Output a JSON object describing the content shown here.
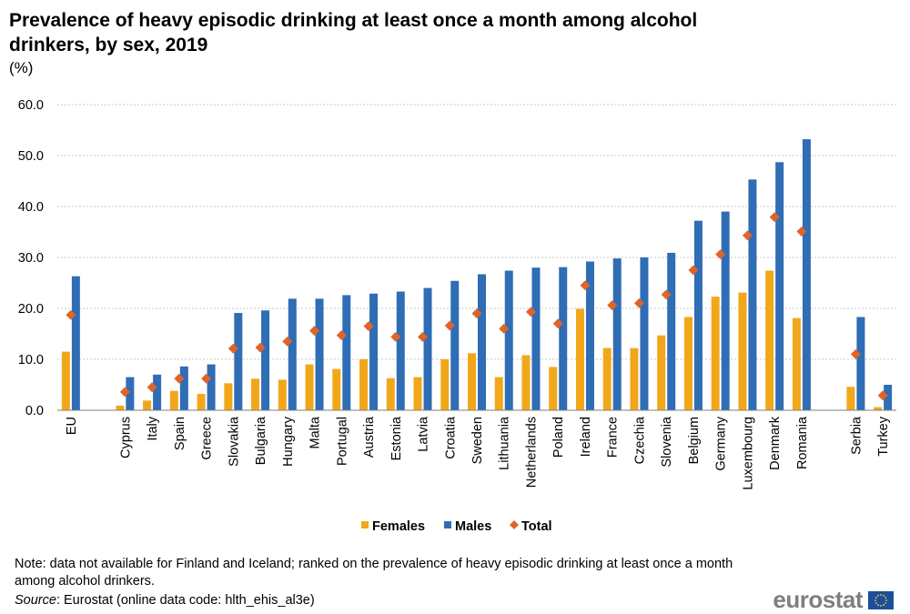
{
  "title": "Prevalence of heavy episodic drinking at least once a month among alcohol drinkers, by sex, 2019",
  "unit": "(%)",
  "note": "Note: data not available for Finland  and Iceland;  ranked on the prevalence  of heavy episodic drinking at least once a month  among alcohol drinkers.",
  "source_label": "Source",
  "source_text": ": Eurostat (online data code: hlth_ehis_al3e)",
  "logo_text": "eurostat",
  "chart_data": {
    "type": "bar",
    "title": "Prevalence of heavy episodic drinking at least once a month among alcohol drinkers, by sex, 2019",
    "ylabel": "(%)",
    "xlabel": "",
    "ylim": [
      0,
      60
    ],
    "yticks": [
      "0.0",
      "10.0",
      "20.0",
      "30.0",
      "40.0",
      "50.0",
      "60.0"
    ],
    "grid": true,
    "legend_position": "bottom",
    "categories": [
      "EU",
      "",
      "Cyprus",
      "Italy",
      "Spain",
      "Greece",
      "Slovakia",
      "Bulgaria",
      "Hungary",
      "Malta",
      "Portugal",
      "Austria",
      "Estonia",
      "Latvia",
      "Croatia",
      "Sweden",
      "Lithuania",
      "Netherlands",
      "Poland",
      "Ireland",
      "France",
      "Czechia",
      "Slovenia",
      "Belgium",
      "Germany",
      "Luxembourg",
      "Denmark",
      "Romania",
      "",
      "Serbia",
      "Turkey"
    ],
    "series": [
      {
        "name": "Females",
        "kind": "bar",
        "color": "#f2a71b",
        "values": [
          11.5,
          null,
          0.9,
          1.9,
          3.8,
          3.2,
          5.3,
          6.2,
          6.0,
          9.0,
          8.1,
          10.0,
          6.3,
          6.5,
          10.0,
          11.2,
          6.5,
          10.8,
          8.5,
          19.9,
          12.2,
          12.2,
          14.7,
          18.3,
          22.3,
          23.1,
          27.4,
          18.1,
          null,
          4.6,
          0.6
        ]
      },
      {
        "name": "Males",
        "kind": "bar",
        "color": "#2f6db5",
        "values": [
          26.3,
          null,
          6.5,
          7.0,
          8.6,
          9.0,
          19.1,
          19.6,
          21.9,
          21.9,
          22.6,
          22.9,
          23.3,
          24.0,
          25.4,
          26.7,
          27.4,
          28.0,
          28.1,
          29.2,
          29.8,
          30.0,
          30.9,
          37.2,
          39.0,
          45.3,
          48.7,
          53.2,
          null,
          18.3,
          5.0
        ]
      },
      {
        "name": "Total",
        "kind": "marker",
        "color": "#e0642a",
        "values": [
          18.7,
          null,
          3.6,
          4.5,
          6.2,
          6.2,
          12.1,
          12.3,
          13.5,
          15.6,
          14.7,
          16.5,
          14.4,
          14.4,
          16.6,
          19.0,
          16.0,
          19.3,
          17.0,
          24.5,
          20.6,
          21.0,
          22.7,
          27.5,
          30.6,
          34.3,
          37.9,
          35.1,
          null,
          11.0,
          2.9
        ]
      }
    ]
  }
}
